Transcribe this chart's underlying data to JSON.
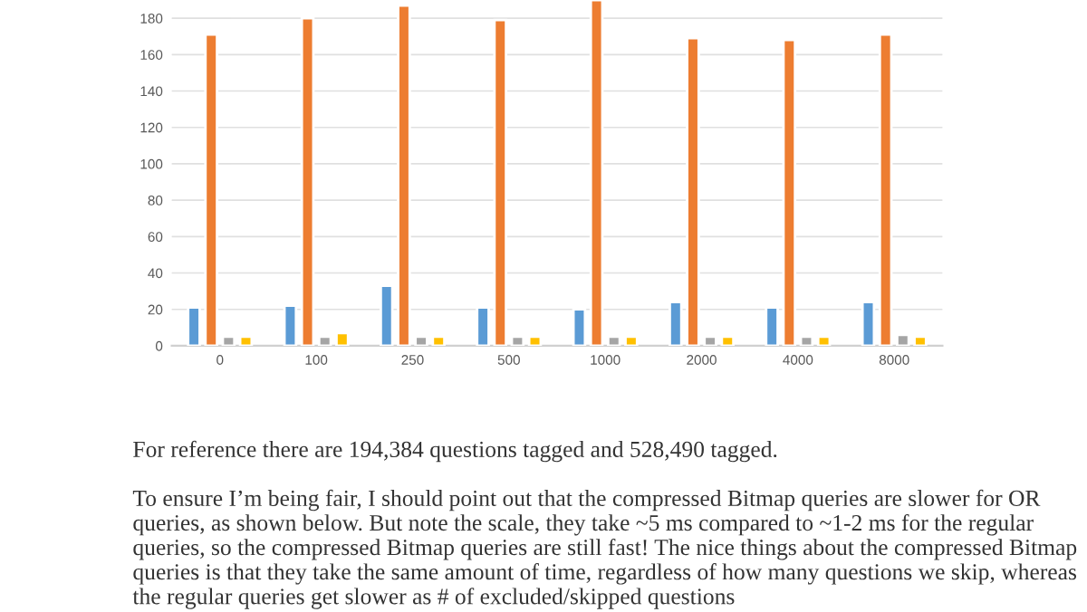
{
  "chart_data": {
    "type": "bar",
    "categories": [
      "0",
      "100",
      "250",
      "500",
      "1000",
      "2000",
      "4000",
      "8000"
    ],
    "series": [
      {
        "color": "#5b9bd5",
        "values": [
          21,
          22,
          33,
          21,
          20,
          24,
          21,
          24
        ]
      },
      {
        "color": "#ed7d31",
        "values": [
          171,
          180,
          187,
          179,
          190,
          169,
          168,
          171
        ]
      },
      {
        "color": "#a5a5a5",
        "values": [
          5,
          5,
          5,
          5,
          5,
          5,
          5,
          6
        ]
      },
      {
        "color": "#ffc000",
        "values": [
          5,
          7,
          5,
          5,
          5,
          5,
          5,
          5
        ]
      }
    ],
    "ylim": [
      0,
      190
    ],
    "yticks": [
      0,
      20,
      40,
      60,
      80,
      100,
      120,
      140,
      160,
      180
    ],
    "grid": "y",
    "annotations": [
      "For reference there are 194,384 questions tagged and 528,490 tagged.",
      "To ensure I’m being fair, I should point out that the compressed Bitmap queries are slower for OR queries, as shown below. But note the scale, they take ~5 ms compared to ~1-2 ms for the regular queries, so the compressed Bitmap queries are still fast! The nice things about the compressed Bitmap queries is that they take the same amount of time, regardless of how many questions we skip, whereas the regular queries get slower as # of excluded/skipped questions"
    ]
  }
}
